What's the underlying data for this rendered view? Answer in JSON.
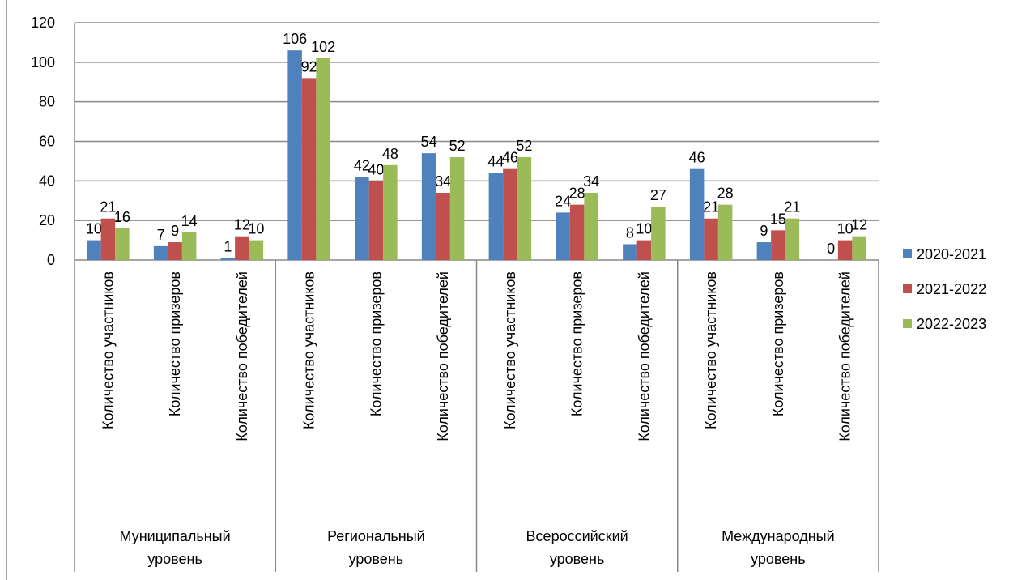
{
  "chart_data": {
    "type": "bar",
    "groups": [
      "Муниципальный уровень",
      "Региональный уровень",
      "Всероссийский уровень",
      "Международный уровень"
    ],
    "categories": [
      "Количество участников",
      "Количество призеров",
      "Количество победителей",
      "Количество участников",
      "Количество призеров",
      "Количество победителей",
      "Количество участников",
      "Количество призеров",
      "Количество победителей",
      "Количество участников",
      "Количество призеров",
      "Количество победителей"
    ],
    "series": [
      {
        "name": "2020-2021",
        "color": "#4f81bd",
        "values": [
          10,
          7,
          1,
          106,
          42,
          54,
          44,
          24,
          8,
          46,
          9,
          0
        ]
      },
      {
        "name": "2021-2022",
        "color": "#c0504d",
        "values": [
          21,
          9,
          12,
          92,
          40,
          34,
          46,
          28,
          10,
          21,
          15,
          10
        ]
      },
      {
        "name": "2022-2023",
        "color": "#9bbb59",
        "values": [
          16,
          14,
          10,
          102,
          48,
          52,
          52,
          34,
          27,
          28,
          21,
          12
        ]
      }
    ],
    "ylim": [
      0,
      120
    ],
    "yticks": [
      0,
      20,
      40,
      60,
      80,
      100,
      120
    ],
    "grid": true,
    "legend": "right"
  }
}
